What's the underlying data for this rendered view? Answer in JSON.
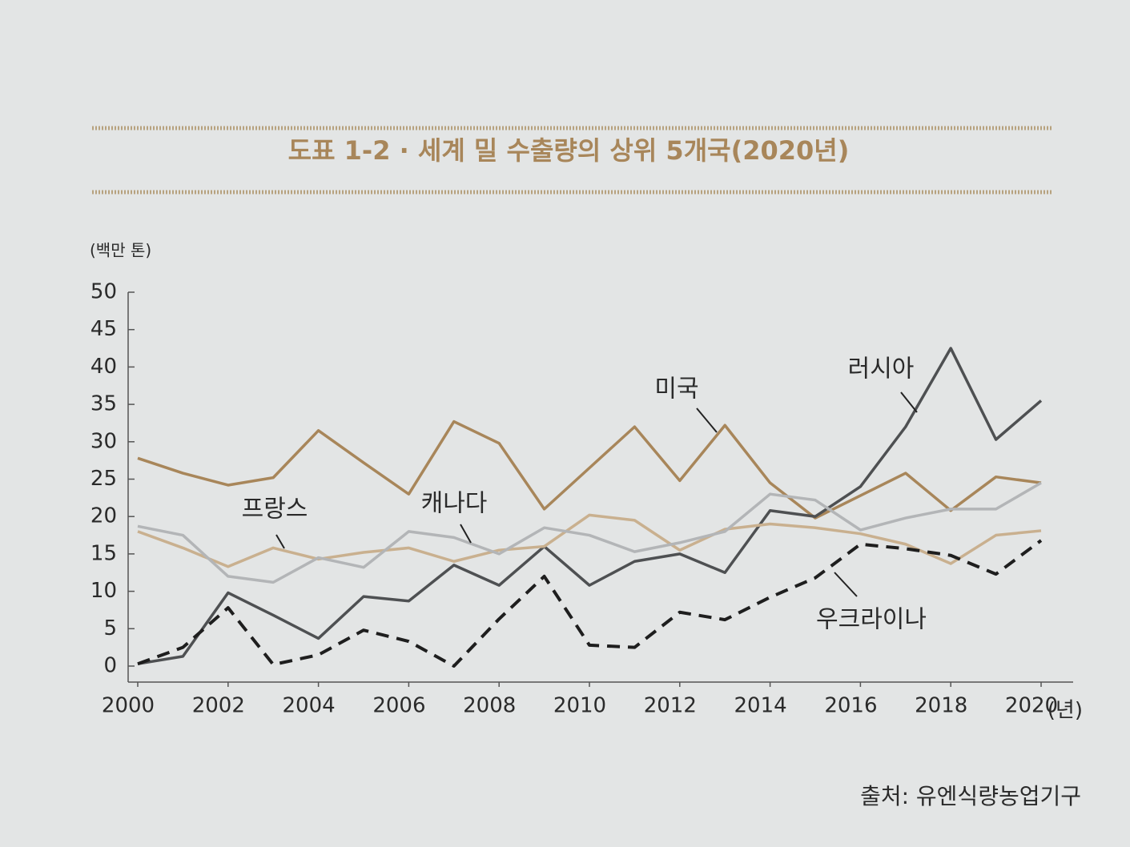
{
  "chart_data": {
    "type": "line",
    "title": "도표 1-2 · 세계 밀 수출량의 상위 5개국(2020년)",
    "y_label": "(백만 톤)",
    "x_label": "(년)",
    "source": "출처: 유엔식량농업기구",
    "x": [
      2000,
      2001,
      2002,
      2003,
      2004,
      2005,
      2006,
      2007,
      2008,
      2009,
      2010,
      2011,
      2012,
      2013,
      2014,
      2015,
      2016,
      2017,
      2018,
      2019,
      2020
    ],
    "xlim": [
      2000,
      2020
    ],
    "xticks": [
      2000,
      2002,
      2004,
      2006,
      2008,
      2010,
      2012,
      2014,
      2016,
      2018,
      2020
    ],
    "ylim": [
      0,
      50
    ],
    "yticks": [
      0,
      5,
      10,
      15,
      20,
      25,
      30,
      35,
      40,
      45,
      50
    ],
    "series": [
      {
        "name": "미국",
        "color": "#a8865a",
        "values": [
          27.8,
          25.8,
          24.2,
          25.2,
          31.5,
          27.2,
          23,
          32.7,
          29.8,
          21,
          26.5,
          32,
          24.8,
          32.2,
          24.5,
          19.8,
          22.8,
          25.8,
          20.8,
          25.3,
          24.5
        ]
      },
      {
        "name": "러시아",
        "color": "#4e5052",
        "values": [
          0.3,
          1.3,
          9.8,
          6.8,
          3.7,
          9.3,
          8.7,
          13.5,
          10.8,
          16,
          10.8,
          14,
          15,
          12.5,
          20.8,
          20,
          24,
          32,
          42.5,
          30.3,
          35.5
        ]
      },
      {
        "name": "프랑스",
        "color": "#c9b08f",
        "values": [
          18,
          15.8,
          13.3,
          15.8,
          14.3,
          15.2,
          15.8,
          14,
          15.5,
          16,
          20.2,
          19.5,
          15.5,
          18.3,
          19,
          18.5,
          17.7,
          16.3,
          13.7,
          17.5,
          18.1
        ]
      },
      {
        "name": "캐나다",
        "color": "#b3b5b7",
        "values": [
          18.7,
          17.5,
          12,
          11.2,
          14.5,
          13.2,
          18,
          17.2,
          15,
          18.5,
          17.5,
          15.3,
          16.5,
          18,
          23,
          22.2,
          18.2,
          19.8,
          21,
          21,
          24.5
        ]
      },
      {
        "name": "우크라이나",
        "color": "#1e1e1e",
        "style": "dashed",
        "values": [
          0.3,
          2.5,
          7.8,
          0.2,
          1.5,
          4.8,
          3.3,
          0,
          6.3,
          12,
          2.8,
          2.5,
          7.2,
          6.2,
          9.2,
          11.8,
          16.3,
          15.7,
          14.8,
          12.3,
          16.8
        ]
      }
    ]
  }
}
